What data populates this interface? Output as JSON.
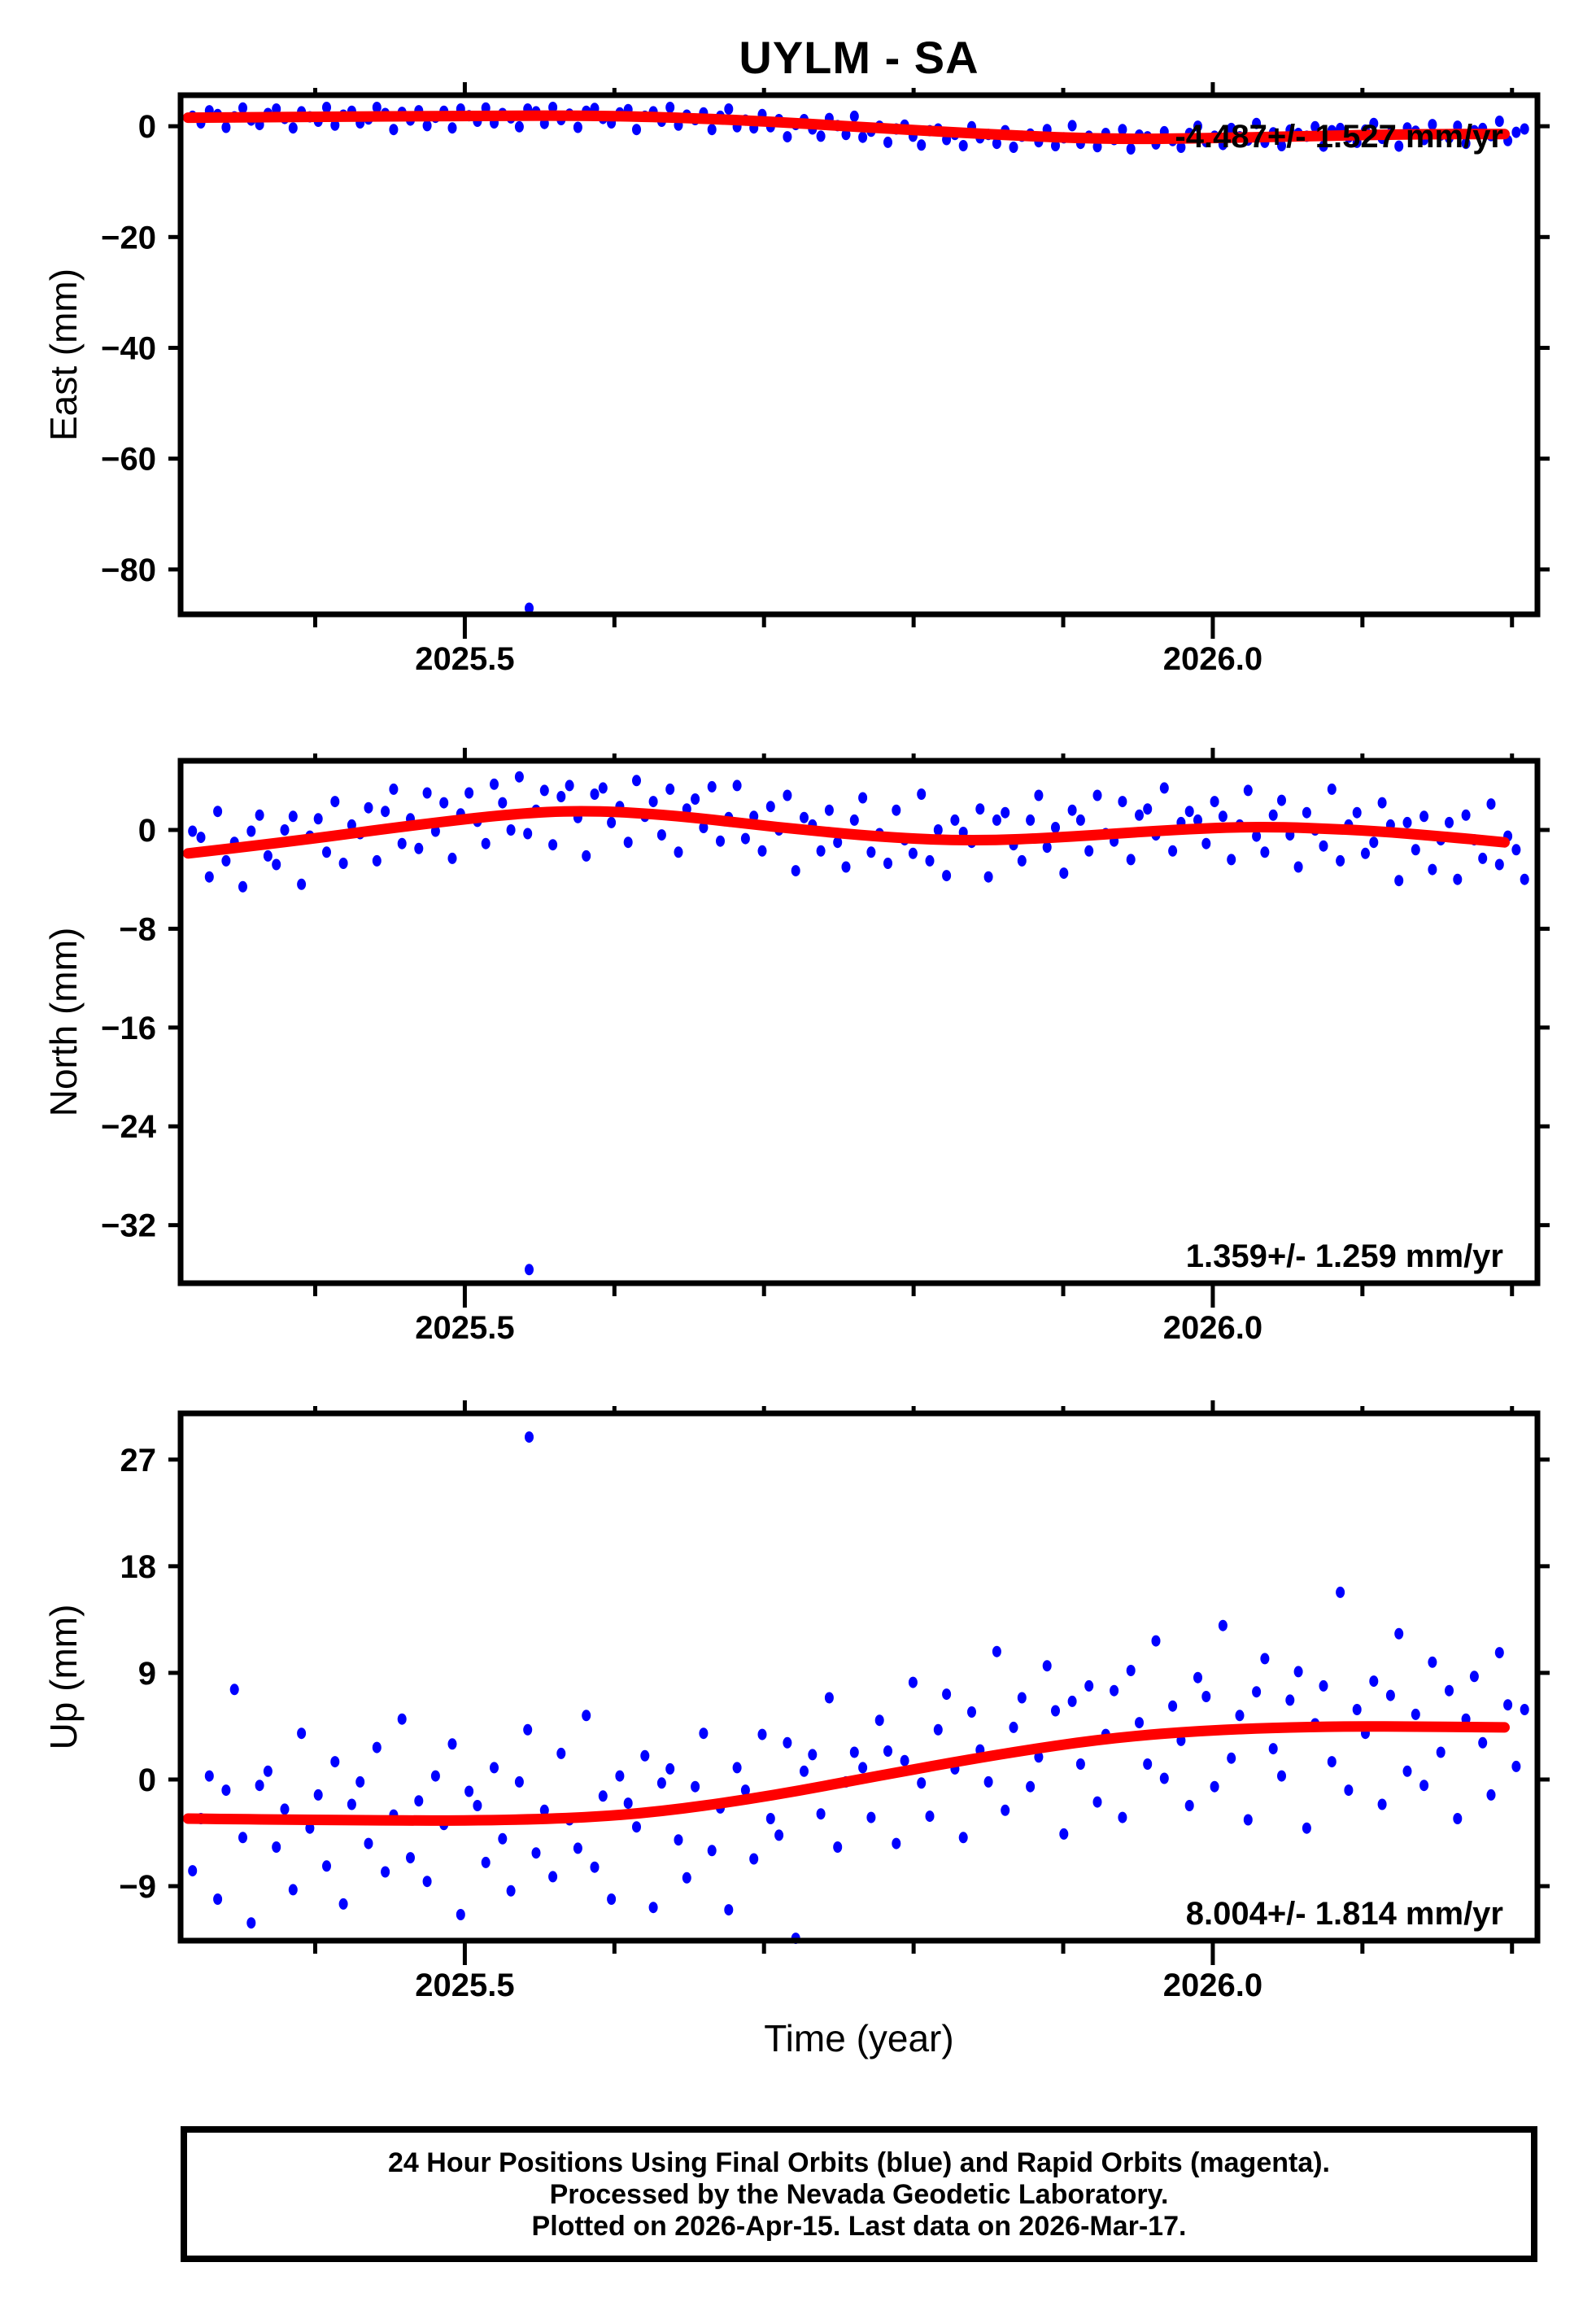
{
  "title": "UYLM - SA",
  "xlabel": "Time (year)",
  "footer": {
    "line1": "24 Hour Positions Using Final Orbits (blue) and Rapid Orbits (magenta).",
    "line2": "Processed by the Nevada Geodetic Laboratory.",
    "line3": "Plotted on 2026-Apr-15. Last data on 2026-Mar-17."
  },
  "colors": {
    "final_orbit_points": "#0000ff",
    "rapid_orbit_points": "#ff00ff",
    "trend_line": "#ff0000",
    "axis": "#000000",
    "background": "#ffffff"
  },
  "chart_data": {
    "type": "scatter",
    "station": "UYLM",
    "solution": "SA",
    "grid": "off",
    "x_axis": {
      "label": "Time (year)",
      "xlim": [
        2025.31,
        2026.217
      ],
      "minor_ticks": [
        2025.4,
        2025.6,
        2025.7,
        2025.8,
        2025.9,
        2026.1,
        2026.2
      ],
      "major_ticks": [
        {
          "v": 2025.5,
          "label": "2025.5"
        },
        {
          "v": 2026.0,
          "label": "2026.0"
        }
      ]
    },
    "panels": [
      {
        "name": "east",
        "ylabel": "East (mm)",
        "rate_text": "-4.487+/- 1.527 mm/yr",
        "rate_pos": "top",
        "ylim": [
          -88.1,
          5.6
        ],
        "yticks": [
          {
            "v": 0,
            "label": "0"
          },
          {
            "v": -20,
            "label": "−20"
          },
          {
            "v": -40,
            "label": "−40"
          },
          {
            "v": -60,
            "label": "−60"
          },
          {
            "v": -80,
            "label": "−80"
          }
        ],
        "points_x0": 2025.318,
        "points_dx": 0.0056,
        "points_y": [
          1.8,
          0.6,
          2.8,
          2.1,
          -0.2,
          1.7,
          3.3,
          1.1,
          0.3,
          2.3,
          3.1,
          1.4,
          -0.3,
          2.6,
          1.7,
          0.9,
          3.4,
          0.2,
          2.0,
          2.7,
          0.6,
          1.3,
          3.4,
          2.3,
          -0.6,
          2.5,
          1.1,
          2.8,
          0.1,
          1.6,
          2.7,
          -0.3,
          3.1,
          1.9,
          0.9,
          3.3,
          0.6,
          2.3,
          1.5,
          -0.1,
          3.1,
          2.6,
          0.5,
          3.4,
          1.2,
          2.2,
          -0.2,
          2.7,
          3.2,
          1.4,
          0.6,
          2.4,
          3.0,
          -0.6,
          1.8,
          2.6,
          0.9,
          3.4,
          0.2,
          2.0,
          1.2,
          2.4,
          -0.6,
          1.8,
          3.1,
          -0.1,
          1.1,
          -0.3,
          2.1,
          -0.1,
          1.2,
          -1.9,
          0.3,
          1.2,
          -0.5,
          -1.8,
          1.4,
          0.1,
          -1.5,
          1.8,
          -2.0,
          -0.9,
          0.0,
          -2.9,
          -0.5,
          0.2,
          -1.8,
          -3.4,
          -0.8,
          -0.5,
          -2.4,
          -1.5,
          -3.5,
          -0.1,
          -2.1,
          -1.5,
          -3.1,
          -0.8,
          -3.8,
          -1.8,
          -1.4,
          -2.8,
          -0.6,
          -3.5,
          -2.1,
          0.1,
          -3.1,
          -1.8,
          -3.7,
          -1.3,
          -2.4,
          -0.6,
          -4.1,
          -1.6,
          -1.9,
          -3.2,
          -1.0,
          -2.6,
          -3.8,
          -1.3,
          0.0,
          -2.8,
          -1.8,
          -3.3,
          -0.4,
          -1.9,
          -2.5,
          0.5,
          -2.9,
          -1.2,
          -3.5,
          -0.7,
          -1.3,
          -1.8,
          -0.1,
          -3.6,
          -0.8,
          -0.4,
          -2.0,
          -2.9,
          -0.7,
          0.5,
          -2.2,
          -1.3,
          -3.6,
          -0.3,
          -0.9,
          -2.4,
          0.3,
          -1.6,
          -2.1,
          0.0,
          -3.1,
          -0.8,
          -0.4,
          -1.7,
          0.9,
          -2.6,
          -1.1,
          -0.5
        ],
        "outliers": [
          [
            2025.543,
            -87.0
          ]
        ],
        "trend": [
          [
            2025.315,
            1.55
          ],
          [
            2025.4,
            1.7
          ],
          [
            2025.5,
            1.85
          ],
          [
            2025.57,
            1.95
          ],
          [
            2025.63,
            1.7
          ],
          [
            2025.7,
            0.9
          ],
          [
            2025.78,
            -0.4
          ],
          [
            2025.86,
            -1.6
          ],
          [
            2025.93,
            -2.35
          ],
          [
            2026.0,
            -2.15
          ],
          [
            2026.07,
            -1.75
          ],
          [
            2026.13,
            -1.45
          ],
          [
            2026.195,
            -1.4
          ]
        ]
      },
      {
        "name": "north",
        "ylabel": "North (mm)",
        "rate_text": "1.359+/- 1.259 mm/yr",
        "rate_pos": "bottom",
        "ylim": [
          -36.7,
          5.6
        ],
        "yticks": [
          {
            "v": 0,
            "label": "0"
          },
          {
            "v": -8,
            "label": "−8"
          },
          {
            "v": -16,
            "label": "−16"
          },
          {
            "v": -24,
            "label": "−24"
          },
          {
            "v": -32,
            "label": "−32"
          }
        ],
        "points_x0": 2025.318,
        "points_dx": 0.0056,
        "points_y": [
          -0.1,
          -0.6,
          -3.8,
          1.5,
          -2.5,
          -1.0,
          -4.6,
          -0.1,
          1.2,
          -2.1,
          -2.8,
          0.0,
          1.1,
          -4.4,
          -0.5,
          0.9,
          -1.8,
          2.3,
          -2.7,
          0.4,
          -0.3,
          1.8,
          -2.5,
          1.5,
          3.3,
          -1.1,
          0.9,
          -1.5,
          3.0,
          -0.1,
          2.2,
          -2.3,
          1.3,
          3.0,
          0.7,
          -1.1,
          3.7,
          2.2,
          0.0,
          4.3,
          -0.3,
          1.6,
          3.2,
          -1.2,
          2.7,
          3.6,
          1.0,
          -2.1,
          2.9,
          3.4,
          0.6,
          1.9,
          -1.0,
          4.0,
          1.1,
          2.3,
          -0.4,
          3.3,
          -1.8,
          1.7,
          2.5,
          0.2,
          3.5,
          -0.9,
          1.0,
          3.6,
          -0.7,
          1.1,
          -1.7,
          1.9,
          0.0,
          2.8,
          -3.3,
          1.0,
          0.4,
          -1.7,
          1.6,
          -1.0,
          -3.0,
          0.8,
          2.6,
          -1.8,
          -0.3,
          -2.7,
          1.6,
          -0.8,
          -1.9,
          2.9,
          -2.5,
          0.0,
          -3.7,
          0.8,
          -0.2,
          -1.0,
          1.7,
          -3.8,
          0.8,
          1.4,
          -1.2,
          -2.5,
          0.8,
          2.8,
          -1.4,
          0.2,
          -3.5,
          1.6,
          0.8,
          -1.7,
          2.8,
          -0.3,
          -0.9,
          2.3,
          -2.4,
          1.2,
          1.7,
          -0.4,
          3.4,
          -1.7,
          0.6,
          1.5,
          0.8,
          -1.1,
          2.3,
          1.1,
          -2.4,
          0.4,
          3.2,
          -0.5,
          -1.8,
          1.2,
          2.4,
          -0.4,
          -3.0,
          1.4,
          0.0,
          -1.3,
          3.3,
          -2.5,
          0.4,
          1.4,
          -1.9,
          -1.0,
          2.2,
          0.4,
          -4.1,
          0.6,
          -1.6,
          1.1,
          -3.2,
          -0.8,
          0.6,
          -4.0,
          1.2,
          -0.8,
          -2.3,
          2.1,
          -2.8,
          -0.5,
          -1.6,
          -4.0
        ],
        "outliers": [
          [
            2025.543,
            -35.6
          ]
        ],
        "trend": [
          [
            2025.315,
            -1.9
          ],
          [
            2025.38,
            -1.0
          ],
          [
            2025.46,
            0.3
          ],
          [
            2025.53,
            1.3
          ],
          [
            2025.58,
            1.6
          ],
          [
            2025.64,
            1.2
          ],
          [
            2025.71,
            0.2
          ],
          [
            2025.78,
            -0.6
          ],
          [
            2025.84,
            -0.9
          ],
          [
            2025.9,
            -0.6
          ],
          [
            2025.97,
            0.0
          ],
          [
            2026.03,
            0.3
          ],
          [
            2026.1,
            0.0
          ],
          [
            2026.16,
            -0.6
          ],
          [
            2026.195,
            -1.0
          ]
        ]
      },
      {
        "name": "up",
        "ylabel": "Up (mm)",
        "rate_text": "8.004+/- 1.814 mm/yr",
        "rate_pos": "bottom",
        "ylim": [
          -13.6,
          30.9
        ],
        "yticks": [
          {
            "v": 27,
            "label": "27"
          },
          {
            "v": 18,
            "label": "18"
          },
          {
            "v": 9,
            "label": "9"
          },
          {
            "v": 0,
            "label": "0"
          },
          {
            "v": -9,
            "label": "−9"
          }
        ],
        "points_x0": 2025.318,
        "points_dx": 0.0056,
        "points_y": [
          -7.7,
          -3.3,
          0.3,
          -10.1,
          -0.9,
          7.6,
          -4.9,
          -12.1,
          -0.5,
          0.7,
          -5.7,
          -2.5,
          -9.3,
          3.9,
          -4.1,
          -1.3,
          -7.3,
          1.5,
          -10.5,
          -2.1,
          -0.2,
          -5.4,
          2.7,
          -7.8,
          -3.0,
          5.1,
          -6.6,
          -1.8,
          -8.6,
          0.3,
          -3.8,
          3.0,
          -11.4,
          -1.0,
          -2.2,
          -7.0,
          1.0,
          -5.0,
          -9.4,
          -0.2,
          4.2,
          -6.2,
          -2.6,
          -8.2,
          2.2,
          -3.4,
          -5.8,
          5.4,
          -7.4,
          -1.4,
          -10.1,
          0.3,
          -2.0,
          -4.0,
          2.0,
          -10.8,
          -0.3,
          0.9,
          -5.1,
          -8.3,
          -0.6,
          3.9,
          -6.0,
          -2.4,
          -11.0,
          1.0,
          -0.9,
          -6.7,
          3.8,
          -3.3,
          -4.7,
          3.1,
          -13.4,
          0.7,
          2.1,
          -2.9,
          6.9,
          -5.7,
          -0.2,
          2.3,
          1.0,
          -3.2,
          5.0,
          2.4,
          -5.4,
          1.6,
          8.2,
          -0.3,
          -3.1,
          4.2,
          7.2,
          0.9,
          -4.9,
          5.7,
          2.5,
          -0.2,
          10.8,
          -2.6,
          4.4,
          6.9,
          -0.6,
          1.9,
          9.6,
          5.8,
          -4.6,
          6.6,
          1.3,
          7.9,
          -1.9,
          3.8,
          7.5,
          -3.2,
          9.2,
          4.8,
          1.3,
          11.7,
          0.1,
          6.2,
          3.3,
          -2.2,
          8.6,
          7.0,
          -0.6,
          13.0,
          1.8,
          5.4,
          -3.4,
          7.4,
          10.2,
          2.6,
          0.3,
          6.7,
          9.1,
          -4.1,
          4.7,
          7.9,
          1.5,
          15.8,
          -0.9,
          5.9,
          3.9,
          8.3,
          -2.1,
          7.1,
          12.3,
          0.7,
          5.5,
          -0.5,
          9.9,
          2.3,
          7.5,
          -3.3,
          5.1,
          8.7,
          3.1,
          -1.3,
          10.7,
          6.3,
          1.1,
          5.9
        ],
        "outliers": [
          [
            2025.543,
            28.9
          ]
        ],
        "trend": [
          [
            2025.315,
            -3.3
          ],
          [
            2025.45,
            -3.5
          ],
          [
            2025.55,
            -3.4
          ],
          [
            2025.62,
            -2.9
          ],
          [
            2025.7,
            -1.5
          ],
          [
            2025.78,
            0.4
          ],
          [
            2025.86,
            2.2
          ],
          [
            2025.93,
            3.5
          ],
          [
            2026.0,
            4.2
          ],
          [
            2026.08,
            4.5
          ],
          [
            2026.15,
            4.45
          ],
          [
            2026.195,
            4.4
          ]
        ]
      }
    ]
  }
}
